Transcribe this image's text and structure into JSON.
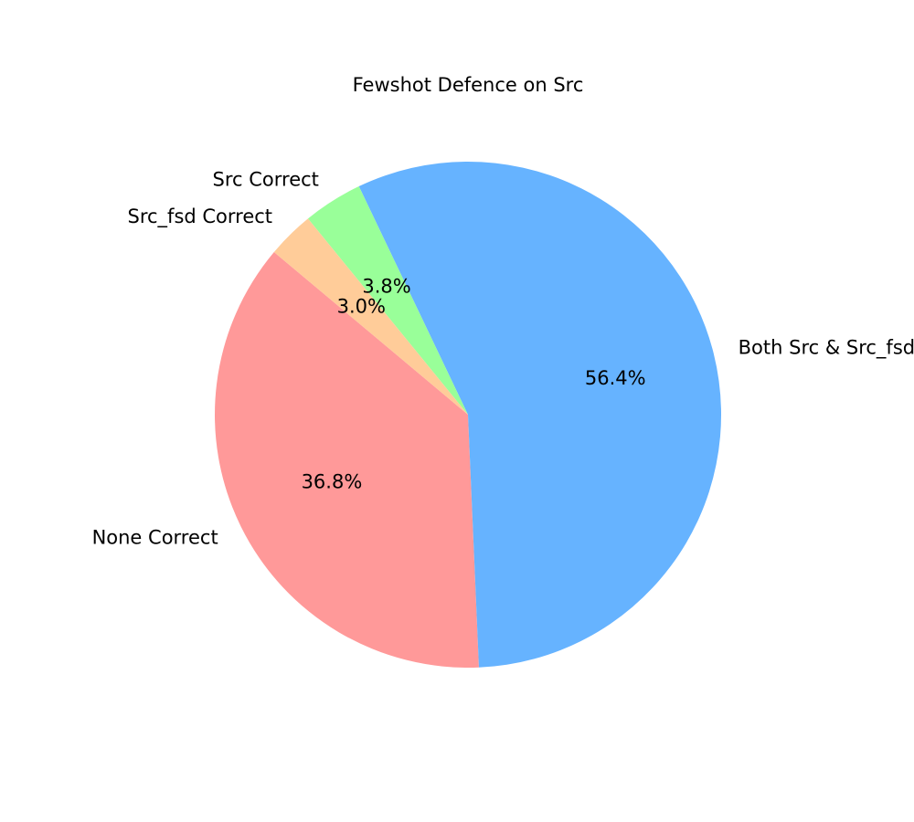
{
  "chart_data": {
    "type": "pie",
    "title": "Fewshot Defence on Src",
    "start_angle_deg": 140,
    "direction": "counterclockwise",
    "slices": [
      {
        "label": "None Correct",
        "value": 36.8,
        "pct_label": "36.8%",
        "color": "#ff9999"
      },
      {
        "label": "Both Src & Src_fsd Correct",
        "value": 56.4,
        "pct_label": "56.4%",
        "color": "#66b3ff"
      },
      {
        "label": "Src Correct",
        "value": 3.8,
        "pct_label": "3.8%",
        "color": "#99ff99"
      },
      {
        "label": "Src_fsd Correct",
        "value": 3.0,
        "pct_label": "3.0%",
        "color": "#ffcc99"
      }
    ]
  }
}
